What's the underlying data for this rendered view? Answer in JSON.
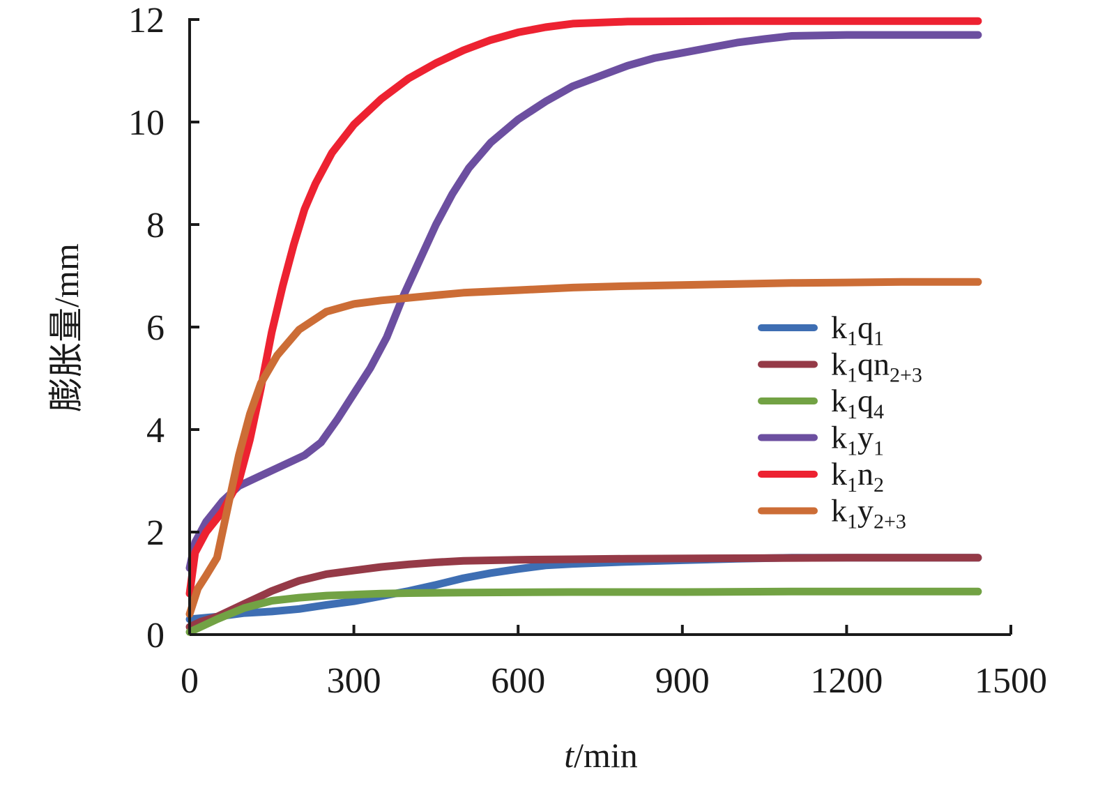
{
  "chart_data": {
    "type": "line",
    "xlabel_italic": "t",
    "xlabel_rest": "/min",
    "ylabel": "膨胀量/mm",
    "xlim": [
      0,
      1500
    ],
    "ylim": [
      0,
      12
    ],
    "xticks": [
      0,
      300,
      600,
      900,
      1200,
      1500
    ],
    "yticks": [
      0,
      2,
      4,
      6,
      8,
      10,
      12
    ],
    "grid": false,
    "legend_position": "right-middle",
    "series": [
      {
        "name": "k1q1",
        "label_parts": {
          "base1": "k",
          "sub1": "1",
          "base2": "q",
          "sub2": "1"
        },
        "color": "#3e6eb3",
        "points": [
          [
            0,
            0.3
          ],
          [
            50,
            0.35
          ],
          [
            100,
            0.42
          ],
          [
            150,
            0.45
          ],
          [
            200,
            0.5
          ],
          [
            250,
            0.58
          ],
          [
            300,
            0.65
          ],
          [
            350,
            0.75
          ],
          [
            400,
            0.85
          ],
          [
            450,
            0.97
          ],
          [
            500,
            1.1
          ],
          [
            550,
            1.2
          ],
          [
            600,
            1.28
          ],
          [
            650,
            1.35
          ],
          [
            700,
            1.38
          ],
          [
            800,
            1.42
          ],
          [
            900,
            1.45
          ],
          [
            1000,
            1.48
          ],
          [
            1100,
            1.5
          ],
          [
            1200,
            1.5
          ],
          [
            1300,
            1.5
          ],
          [
            1440,
            1.5
          ]
        ]
      },
      {
        "name": "k1qn2+3",
        "label_parts": {
          "base1": "k",
          "sub1": "1",
          "base2": "qn",
          "sub2": "2+3"
        },
        "color": "#953a47",
        "points": [
          [
            0,
            0.15
          ],
          [
            20,
            0.25
          ],
          [
            50,
            0.35
          ],
          [
            100,
            0.6
          ],
          [
            150,
            0.85
          ],
          [
            200,
            1.05
          ],
          [
            250,
            1.18
          ],
          [
            300,
            1.25
          ],
          [
            350,
            1.32
          ],
          [
            400,
            1.37
          ],
          [
            450,
            1.41
          ],
          [
            500,
            1.44
          ],
          [
            600,
            1.46
          ],
          [
            700,
            1.47
          ],
          [
            800,
            1.48
          ],
          [
            1000,
            1.49
          ],
          [
            1200,
            1.5
          ],
          [
            1440,
            1.5
          ]
        ]
      },
      {
        "name": "k1q4",
        "label_parts": {
          "base1": "k",
          "sub1": "1",
          "base2": "q",
          "sub2": "4"
        },
        "color": "#72a244",
        "points": [
          [
            0,
            0.05
          ],
          [
            20,
            0.15
          ],
          [
            50,
            0.3
          ],
          [
            100,
            0.52
          ],
          [
            150,
            0.66
          ],
          [
            200,
            0.72
          ],
          [
            250,
            0.76
          ],
          [
            300,
            0.78
          ],
          [
            350,
            0.8
          ],
          [
            400,
            0.81
          ],
          [
            500,
            0.82
          ],
          [
            700,
            0.83
          ],
          [
            900,
            0.83
          ],
          [
            1100,
            0.84
          ],
          [
            1300,
            0.84
          ],
          [
            1440,
            0.84
          ]
        ]
      },
      {
        "name": "k1y1",
        "label_parts": {
          "base1": "k",
          "sub1": "1",
          "base2": "y",
          "sub2": "1"
        },
        "color": "#6c4fa0",
        "points": [
          [
            0,
            1.3
          ],
          [
            10,
            1.8
          ],
          [
            30,
            2.2
          ],
          [
            60,
            2.6
          ],
          [
            90,
            2.9
          ],
          [
            120,
            3.05
          ],
          [
            150,
            3.2
          ],
          [
            180,
            3.35
          ],
          [
            210,
            3.5
          ],
          [
            240,
            3.75
          ],
          [
            270,
            4.2
          ],
          [
            300,
            4.7
          ],
          [
            330,
            5.2
          ],
          [
            360,
            5.8
          ],
          [
            390,
            6.6
          ],
          [
            420,
            7.3
          ],
          [
            450,
            8.0
          ],
          [
            480,
            8.6
          ],
          [
            510,
            9.1
          ],
          [
            550,
            9.6
          ],
          [
            600,
            10.05
          ],
          [
            650,
            10.4
          ],
          [
            700,
            10.7
          ],
          [
            750,
            10.9
          ],
          [
            800,
            11.1
          ],
          [
            850,
            11.25
          ],
          [
            900,
            11.35
          ],
          [
            950,
            11.45
          ],
          [
            1000,
            11.55
          ],
          [
            1050,
            11.62
          ],
          [
            1100,
            11.68
          ],
          [
            1200,
            11.7
          ],
          [
            1300,
            11.7
          ],
          [
            1440,
            11.7
          ]
        ]
      },
      {
        "name": "k1n2",
        "label_parts": {
          "base1": "k",
          "sub1": "1",
          "base2": "n",
          "sub2": "2"
        },
        "color": "#ed2231",
        "points": [
          [
            0,
            0.8
          ],
          [
            10,
            1.6
          ],
          [
            30,
            2.0
          ],
          [
            60,
            2.4
          ],
          [
            90,
            3.0
          ],
          [
            110,
            3.8
          ],
          [
            130,
            4.8
          ],
          [
            150,
            5.9
          ],
          [
            170,
            6.8
          ],
          [
            190,
            7.6
          ],
          [
            210,
            8.3
          ],
          [
            230,
            8.8
          ],
          [
            260,
            9.4
          ],
          [
            300,
            9.95
          ],
          [
            350,
            10.45
          ],
          [
            400,
            10.85
          ],
          [
            450,
            11.15
          ],
          [
            500,
            11.4
          ],
          [
            550,
            11.6
          ],
          [
            600,
            11.75
          ],
          [
            650,
            11.85
          ],
          [
            700,
            11.92
          ],
          [
            800,
            11.96
          ],
          [
            1000,
            11.97
          ],
          [
            1200,
            11.97
          ],
          [
            1440,
            11.97
          ]
        ]
      },
      {
        "name": "k1y2+3",
        "label_parts": {
          "base1": "k",
          "sub1": "1",
          "base2": "y",
          "sub2": "2+3"
        },
        "color": "#cc6d36",
        "points": [
          [
            0,
            0.4
          ],
          [
            15,
            0.9
          ],
          [
            30,
            1.15
          ],
          [
            50,
            1.5
          ],
          [
            70,
            2.5
          ],
          [
            90,
            3.5
          ],
          [
            110,
            4.3
          ],
          [
            130,
            4.9
          ],
          [
            160,
            5.45
          ],
          [
            200,
            5.95
          ],
          [
            250,
            6.3
          ],
          [
            300,
            6.45
          ],
          [
            350,
            6.52
          ],
          [
            400,
            6.57
          ],
          [
            450,
            6.62
          ],
          [
            500,
            6.67
          ],
          [
            600,
            6.72
          ],
          [
            700,
            6.77
          ],
          [
            800,
            6.8
          ],
          [
            900,
            6.82
          ],
          [
            1000,
            6.84
          ],
          [
            1100,
            6.86
          ],
          [
            1200,
            6.87
          ],
          [
            1300,
            6.88
          ],
          [
            1440,
            6.88
          ]
        ]
      }
    ]
  }
}
